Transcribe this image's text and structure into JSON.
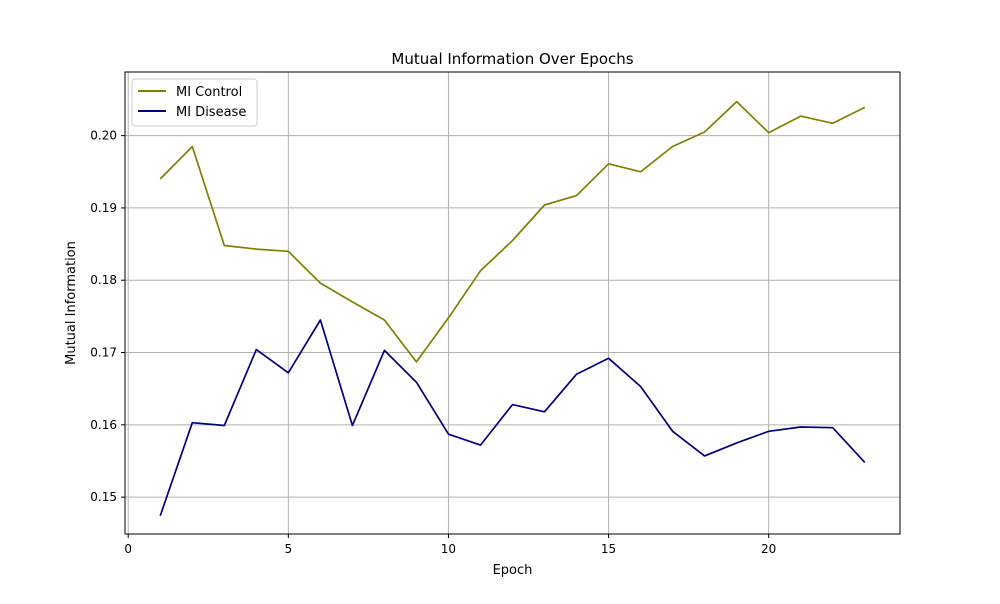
{
  "chart_data": {
    "type": "line",
    "title": "Mutual Information Over Epochs",
    "xlabel": "Epoch",
    "ylabel": "Mutual Information",
    "x": [
      1,
      2,
      3,
      4,
      5,
      6,
      7,
      8,
      9,
      10,
      11,
      12,
      13,
      14,
      15,
      16,
      17,
      18,
      19,
      20,
      21,
      22,
      23
    ],
    "xlim": [
      -0.1,
      24.1
    ],
    "ylim": [
      0.1449,
      0.2088
    ],
    "xticks": [
      0,
      5,
      10,
      15,
      20
    ],
    "yticks": [
      0.15,
      0.16,
      0.17,
      0.18,
      0.19,
      0.2
    ],
    "grid": true,
    "legend_position": "top-left",
    "series": [
      {
        "name": "MI Control",
        "color": "#808000",
        "values": [
          0.194,
          0.1985,
          0.1848,
          0.1843,
          0.184,
          0.1796,
          0.177,
          0.1745,
          0.1687,
          0.1748,
          0.1813,
          0.1855,
          0.1904,
          0.1917,
          0.1961,
          0.195,
          0.1985,
          0.2005,
          0.2047,
          0.2004,
          0.2027,
          0.2017,
          0.2039
        ]
      },
      {
        "name": "MI Disease",
        "color": "#000080",
        "values": [
          0.1474,
          0.1603,
          0.1599,
          0.1704,
          0.1672,
          0.1745,
          0.1599,
          0.1703,
          0.1659,
          0.1587,
          0.1572,
          0.1628,
          0.1618,
          0.167,
          0.1692,
          0.1653,
          0.1591,
          0.1557,
          0.1575,
          0.1591,
          0.1597,
          0.1596,
          0.1548
        ]
      }
    ]
  }
}
